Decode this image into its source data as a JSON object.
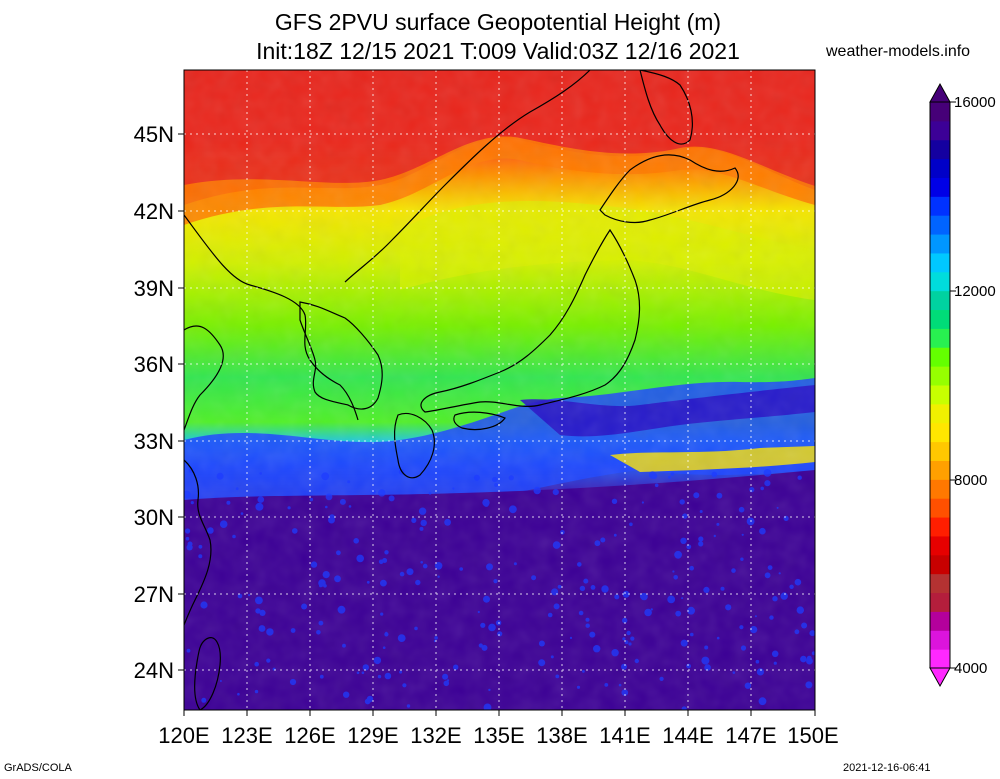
{
  "title_line1": "GFS 2PVU surface Geopotential Height (m)",
  "title_line2": "Init:18Z 12/15 2021 T:009 Valid:03Z 12/16 2021",
  "site": "weather-models.info",
  "lat_labels": [
    "45N",
    "42N",
    "39N",
    "36N",
    "33N",
    "30N",
    "27N",
    "24N"
  ],
  "lon_labels": [
    "120E",
    "123E",
    "126E",
    "129E",
    "132E",
    "135E",
    "138E",
    "141E",
    "144E",
    "147E",
    "150E"
  ],
  "colorbar_labels": [
    "16000",
    "12000",
    "8000",
    "4000"
  ],
  "footer_left": "GrADS/COLA",
  "footer_right": "2021-12-16-06:41",
  "colorbar_colors": [
    "#ff28ff",
    "#dc14dc",
    "#b4009c",
    "#b41e3c",
    "#b43232",
    "#c80000",
    "#e60000",
    "#ff1e00",
    "#ff5000",
    "#ff7800",
    "#ffa000",
    "#ffc800",
    "#ffe600",
    "#f0f000",
    "#c8ff00",
    "#96ff00",
    "#64ff00",
    "#28f050",
    "#00dc78",
    "#00d2a0",
    "#00dcdc",
    "#00c8ff",
    "#0096ff",
    "#0064ff",
    "#0032ff",
    "#0000e6",
    "#0000c8",
    "#1400a0",
    "#3c0096",
    "#460078"
  ],
  "field_bands": [
    {
      "label": "high",
      "color": "#e81e1e"
    },
    {
      "label": "orange",
      "color": "#ff7800"
    },
    {
      "label": "yellow",
      "color": "#f0ec00"
    },
    {
      "label": "light-green",
      "color": "#a6f000"
    },
    {
      "label": "green",
      "color": "#3cdc46"
    },
    {
      "label": "blue",
      "color": "#1e46f0"
    },
    {
      "label": "purple",
      "color": "#3c0096"
    }
  ]
}
